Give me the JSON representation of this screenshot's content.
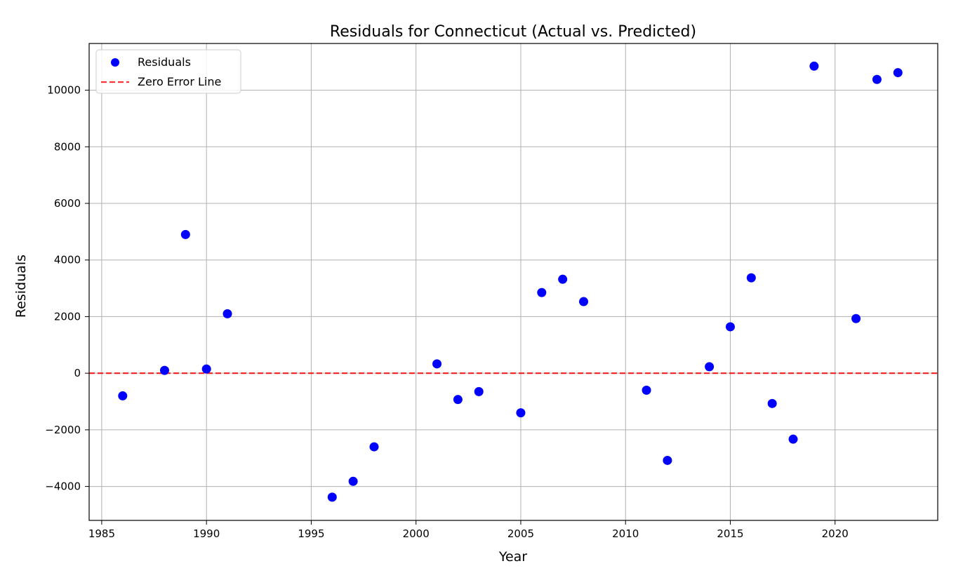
{
  "chart_data": {
    "type": "scatter",
    "title": "Residuals for Connecticut (Actual vs. Predicted)",
    "xlabel": "Year",
    "ylabel": "Residuals",
    "xlim": [
      1984.4,
      2024.9
    ],
    "ylim": [
      -5200,
      11650
    ],
    "xticks": [
      1985,
      1990,
      1995,
      2000,
      2005,
      2010,
      2015,
      2020
    ],
    "yticks": [
      -4000,
      -2000,
      0,
      2000,
      4000,
      6000,
      8000,
      10000
    ],
    "ytick_labels": [
      "−4000",
      "−2000",
      "0",
      "2000",
      "4000",
      "6000",
      "8000",
      "10000"
    ],
    "grid": true,
    "legend_position": "top-left",
    "series": [
      {
        "name": "Residuals",
        "color": "#0000ff",
        "x": [
          1986,
          1988,
          1989,
          1990,
          1991,
          1996,
          1997,
          1998,
          2001,
          2002,
          2003,
          2005,
          2006,
          2007,
          2008,
          2011,
          2012,
          2014,
          2015,
          2016,
          2017,
          2018,
          2019,
          2021,
          2022,
          2023
        ],
        "y": [
          -800,
          100,
          4900,
          150,
          2100,
          -4380,
          -3820,
          -2600,
          330,
          -930,
          -650,
          -1400,
          2850,
          3320,
          2530,
          -600,
          -3080,
          230,
          1640,
          3370,
          -1070,
          -2330,
          10850,
          1930,
          10380,
          10620
        ]
      }
    ],
    "reference_line": {
      "name": "Zero Error Line",
      "y": 0,
      "color": "#ff0000",
      "style": "dashed"
    }
  }
}
